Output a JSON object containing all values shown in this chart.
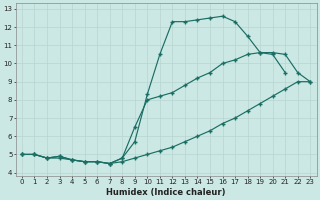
{
  "xlabel": "Humidex (Indice chaleur)",
  "bg_color": "#cce8e4",
  "grid_color": "#b8d4d0",
  "line_color": "#1a6e64",
  "xlim": [
    -0.5,
    23.5
  ],
  "ylim": [
    3.8,
    13.3
  ],
  "xticks": [
    0,
    1,
    2,
    3,
    4,
    5,
    6,
    7,
    8,
    9,
    10,
    11,
    12,
    13,
    14,
    15,
    16,
    17,
    18,
    19,
    20,
    21,
    22,
    23
  ],
  "yticks": [
    4,
    5,
    6,
    7,
    8,
    9,
    10,
    11,
    12,
    13
  ],
  "series1_x": [
    0,
    1,
    2,
    3,
    4,
    5,
    6,
    7,
    8,
    9,
    10,
    11,
    12,
    13,
    14,
    15,
    16,
    17,
    18,
    19,
    20,
    21
  ],
  "series1_y": [
    5.0,
    5.0,
    4.8,
    4.9,
    4.7,
    4.6,
    4.6,
    4.5,
    4.8,
    5.7,
    8.3,
    10.5,
    12.3,
    12.3,
    12.4,
    12.5,
    12.6,
    12.3,
    11.5,
    10.6,
    10.5,
    9.5
  ],
  "series2_x": [
    0,
    1,
    2,
    3,
    4,
    5,
    6,
    7,
    8,
    9,
    10,
    11,
    12,
    13,
    14,
    15,
    16,
    17,
    18,
    19,
    20,
    21,
    22,
    23
  ],
  "series2_y": [
    5.0,
    5.0,
    4.8,
    4.9,
    4.7,
    4.6,
    4.6,
    4.5,
    4.8,
    6.5,
    8.0,
    8.2,
    8.4,
    8.8,
    9.2,
    9.5,
    10.0,
    10.2,
    10.5,
    10.6,
    10.6,
    10.5,
    9.5,
    9.0
  ],
  "series3_x": [
    0,
    1,
    2,
    3,
    4,
    5,
    6,
    7,
    8,
    9,
    10,
    11,
    12,
    13,
    14,
    15,
    16,
    17,
    18,
    19,
    20,
    21,
    22,
    23
  ],
  "series3_y": [
    5.0,
    5.0,
    4.8,
    4.8,
    4.7,
    4.6,
    4.6,
    4.5,
    4.6,
    4.8,
    5.0,
    5.2,
    5.4,
    5.7,
    6.0,
    6.3,
    6.7,
    7.0,
    7.4,
    7.8,
    8.2,
    8.6,
    9.0,
    9.0
  ]
}
